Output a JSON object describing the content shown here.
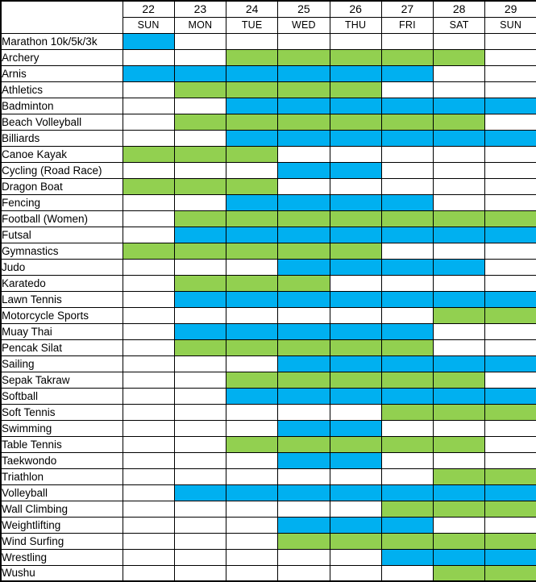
{
  "header": {
    "corner_label": "",
    "day_numbers": [
      "22",
      "23",
      "24",
      "25",
      "26",
      "27",
      "28",
      "29"
    ],
    "day_names": [
      "SUN",
      "MON",
      "TUE",
      "WED",
      "THU",
      "FRI",
      "SAT",
      "SUN"
    ]
  },
  "colors": {
    "event_blue": "#00B0F0",
    "event_green": "#92D050",
    "grid_border": "#000000",
    "background": "#FFFFFF"
  },
  "chart_data": {
    "type": "heatmap",
    "columns": [
      22,
      23,
      24,
      25,
      26,
      27,
      28,
      29
    ],
    "column_labels": [
      "SUN",
      "MON",
      "TUE",
      "WED",
      "THU",
      "FRI",
      "SAT",
      "SUN"
    ],
    "grid": true,
    "rows": [
      {
        "sport": "Marathon 10k/5k/3k",
        "days": [
          22
        ],
        "color": "#00B0F0"
      },
      {
        "sport": "Archery",
        "days": [
          24,
          25,
          26,
          27,
          28
        ],
        "color": "#92D050"
      },
      {
        "sport": "Arnis",
        "days": [
          22,
          23,
          24,
          25,
          26,
          27
        ],
        "color": "#00B0F0"
      },
      {
        "sport": "Athletics",
        "days": [
          23,
          24,
          25,
          26
        ],
        "color": "#92D050"
      },
      {
        "sport": "Badminton",
        "days": [
          24,
          25,
          26,
          27,
          28,
          29
        ],
        "color": "#00B0F0"
      },
      {
        "sport": "Beach Volleyball",
        "days": [
          23,
          24,
          25,
          26,
          27,
          28
        ],
        "color": "#92D050"
      },
      {
        "sport": "Billiards",
        "days": [
          24,
          25,
          26,
          27,
          28,
          29
        ],
        "color": "#00B0F0"
      },
      {
        "sport": "Canoe Kayak",
        "days": [
          22,
          23,
          24
        ],
        "color": "#92D050"
      },
      {
        "sport": "Cycling (Road Race)",
        "days": [
          25,
          26
        ],
        "color": "#00B0F0"
      },
      {
        "sport": "Dragon Boat",
        "days": [
          22,
          23,
          24
        ],
        "color": "#92D050"
      },
      {
        "sport": "Fencing",
        "days": [
          24,
          25,
          26,
          27
        ],
        "color": "#00B0F0"
      },
      {
        "sport": "Football (Women)",
        "days": [
          23,
          24,
          25,
          26,
          27,
          28,
          29
        ],
        "color": "#92D050"
      },
      {
        "sport": "Futsal",
        "days": [
          23,
          24,
          25,
          26,
          27,
          28,
          29
        ],
        "color": "#00B0F0"
      },
      {
        "sport": "Gymnastics",
        "days": [
          22,
          23,
          24,
          25,
          26
        ],
        "color": "#92D050"
      },
      {
        "sport": "Judo",
        "days": [
          25,
          26,
          27,
          28
        ],
        "color": "#00B0F0"
      },
      {
        "sport": "Karatedo",
        "days": [
          23,
          24,
          25
        ],
        "color": "#92D050"
      },
      {
        "sport": "Lawn Tennis",
        "days": [
          23,
          24,
          25,
          26,
          27,
          28,
          29
        ],
        "color": "#00B0F0"
      },
      {
        "sport": "Motorcycle Sports",
        "days": [
          28,
          29
        ],
        "color": "#92D050"
      },
      {
        "sport": "Muay Thai",
        "days": [
          23,
          24,
          25,
          26,
          27
        ],
        "color": "#00B0F0"
      },
      {
        "sport": "Pencak Silat",
        "days": [
          23,
          24,
          25,
          26,
          27
        ],
        "color": "#92D050"
      },
      {
        "sport": "Sailing",
        "days": [
          25,
          26,
          27,
          28,
          29
        ],
        "color": "#00B0F0"
      },
      {
        "sport": "Sepak Takraw",
        "days": [
          24,
          25,
          26,
          27,
          28
        ],
        "color": "#92D050"
      },
      {
        "sport": "Softball",
        "days": [
          24,
          25,
          26,
          27,
          28,
          29
        ],
        "color": "#00B0F0"
      },
      {
        "sport": "Soft Tennis",
        "days": [
          27,
          28,
          29
        ],
        "color": "#92D050"
      },
      {
        "sport": "Swimming",
        "days": [
          25,
          26
        ],
        "color": "#00B0F0"
      },
      {
        "sport": "Table Tennis",
        "days": [
          24,
          25,
          26,
          27,
          28
        ],
        "color": "#92D050"
      },
      {
        "sport": "Taekwondo",
        "days": [
          25,
          26
        ],
        "color": "#00B0F0"
      },
      {
        "sport": "Triathlon",
        "days": [
          28,
          29
        ],
        "color": "#92D050"
      },
      {
        "sport": "Volleyball",
        "days": [
          23,
          24,
          25,
          26,
          27,
          28,
          29
        ],
        "color": "#00B0F0"
      },
      {
        "sport": "Wall Climbing",
        "days": [
          27,
          28,
          29
        ],
        "color": "#92D050"
      },
      {
        "sport": "Weightlifting",
        "days": [
          25,
          26,
          27
        ],
        "color": "#00B0F0"
      },
      {
        "sport": "Wind Surfing",
        "days": [
          25,
          26,
          27,
          28,
          29
        ],
        "color": "#92D050"
      },
      {
        "sport": "Wrestling",
        "days": [
          27,
          28,
          29
        ],
        "color": "#00B0F0"
      },
      {
        "sport": "Wushu",
        "days": [
          28,
          29
        ],
        "color": "#92D050"
      }
    ]
  }
}
